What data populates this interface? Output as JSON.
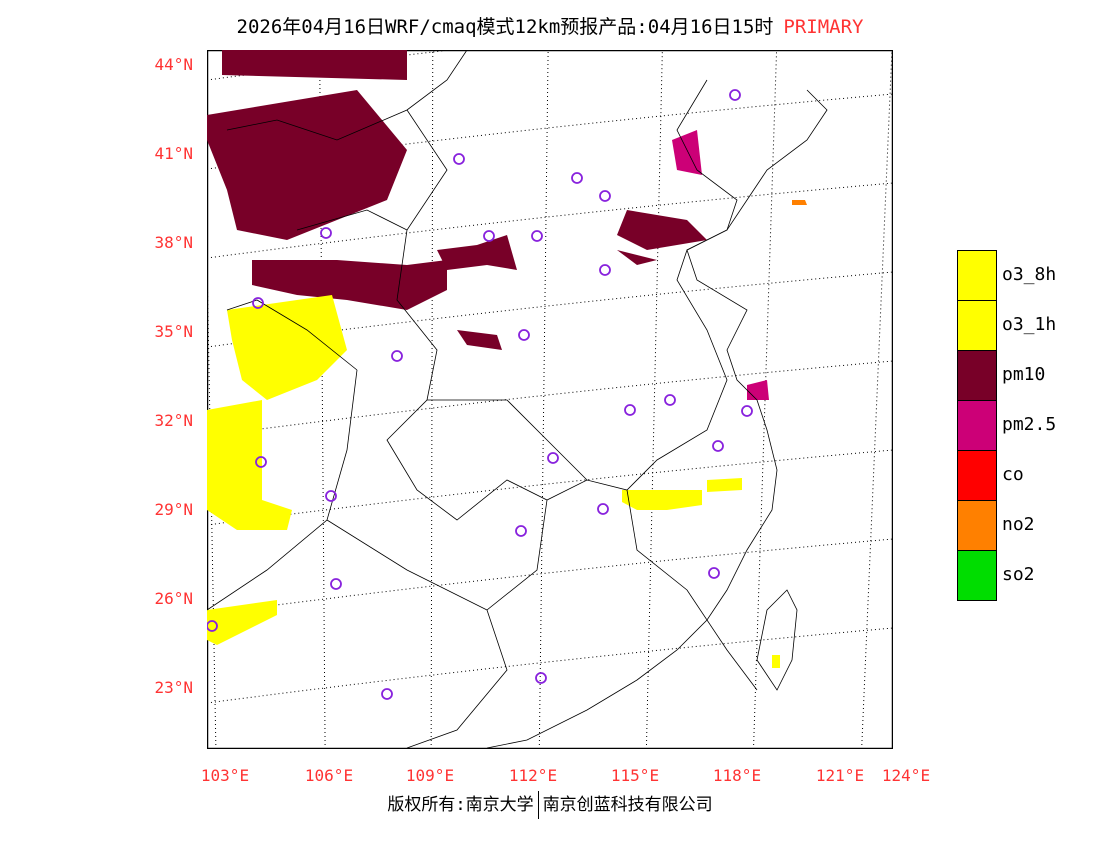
{
  "title": {
    "text": "2026年04月16日WRF/cmaq模式12km预报产品:04月16日15时",
    "tag": "PRIMARY"
  },
  "latitudes": [
    "44°N",
    "41°N",
    "38°N",
    "35°N",
    "32°N",
    "29°N",
    "26°N",
    "23°N"
  ],
  "longitudes": [
    "103°E",
    "106°E",
    "109°E",
    "112°E",
    "115°E",
    "118°E",
    "121°E",
    "124°E"
  ],
  "legend": [
    {
      "label": "o3_8h",
      "color": "#ffff00"
    },
    {
      "label": "o3_1h",
      "color": "#ffff00"
    },
    {
      "label": "pm10",
      "color": "#780028"
    },
    {
      "label": "pm2.5",
      "color": "#cc0077"
    },
    {
      "label": "co",
      "color": "#ff0000"
    },
    {
      "label": "no2",
      "color": "#ff8000"
    },
    {
      "label": "so2",
      "color": "#00dd00"
    }
  ],
  "footer": {
    "left": "版权所有:南京大学",
    "right": "南京创蓝科技有限公司"
  }
}
